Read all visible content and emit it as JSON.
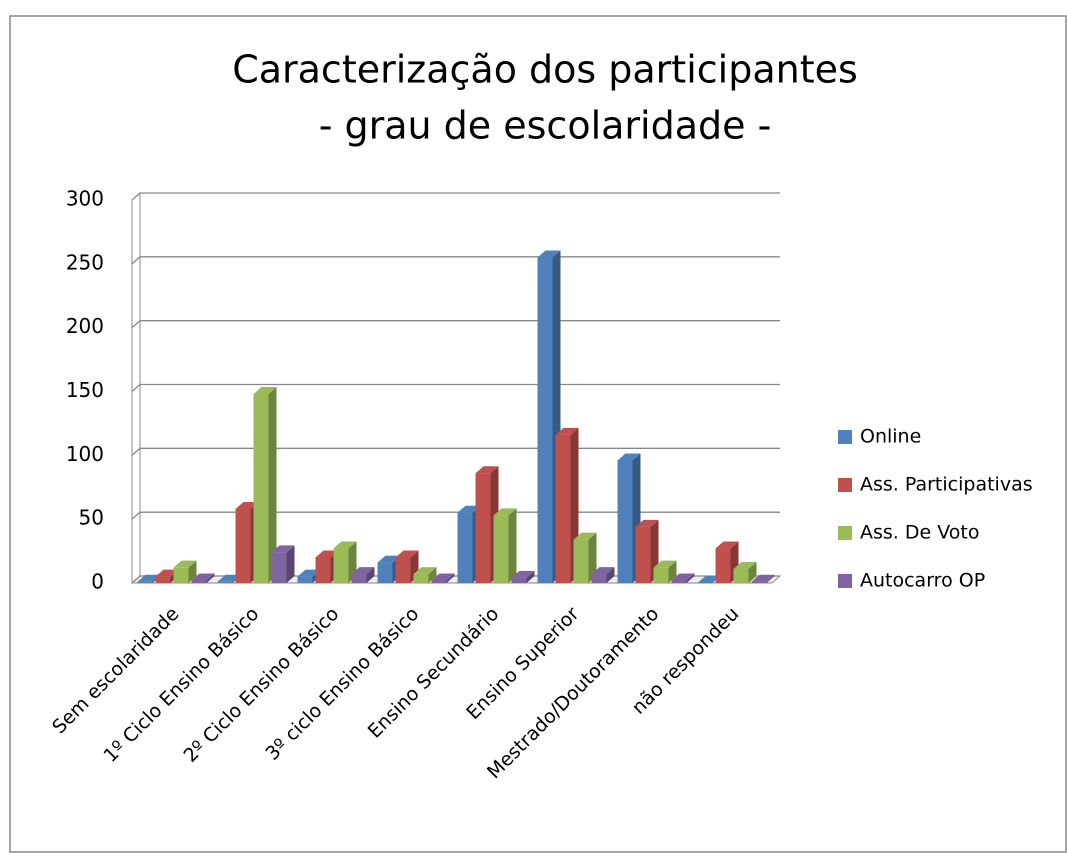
{
  "chart_data": {
    "type": "bar3d",
    "title": "Caracterização dos participantes",
    "subtitle": "- grau de escolaridade -",
    "categories": [
      "Sem escolaridade",
      "1º Ciclo Ensino Básico",
      "2º Ciclo Ensino Básico",
      "3º ciclo Ensino Básico",
      "Ensino Secundário",
      "Ensino Superior",
      "Mestrado/Doutoramento",
      "não respondeu"
    ],
    "series": [
      {
        "name": "Online",
        "color": "#4f81bd",
        "values": [
          1,
          1,
          5,
          16,
          55,
          255,
          96,
          0
        ]
      },
      {
        "name": "Ass. Participativas",
        "color": "#c0504d",
        "values": [
          5,
          58,
          20,
          20,
          86,
          116,
          44,
          27
        ]
      },
      {
        "name": "Ass. De Voto",
        "color": "#9bbb59",
        "values": [
          12,
          148,
          27,
          7,
          53,
          34,
          12,
          11
        ]
      },
      {
        "name": "Autocarro OP",
        "color": "#8064a2",
        "values": [
          2,
          24,
          7,
          2,
          4,
          7,
          2,
          1
        ]
      }
    ],
    "ylim": [
      0,
      300
    ],
    "yticks": [
      0,
      50,
      100,
      150,
      200,
      250,
      300
    ],
    "grid": true,
    "legend": "right"
  }
}
